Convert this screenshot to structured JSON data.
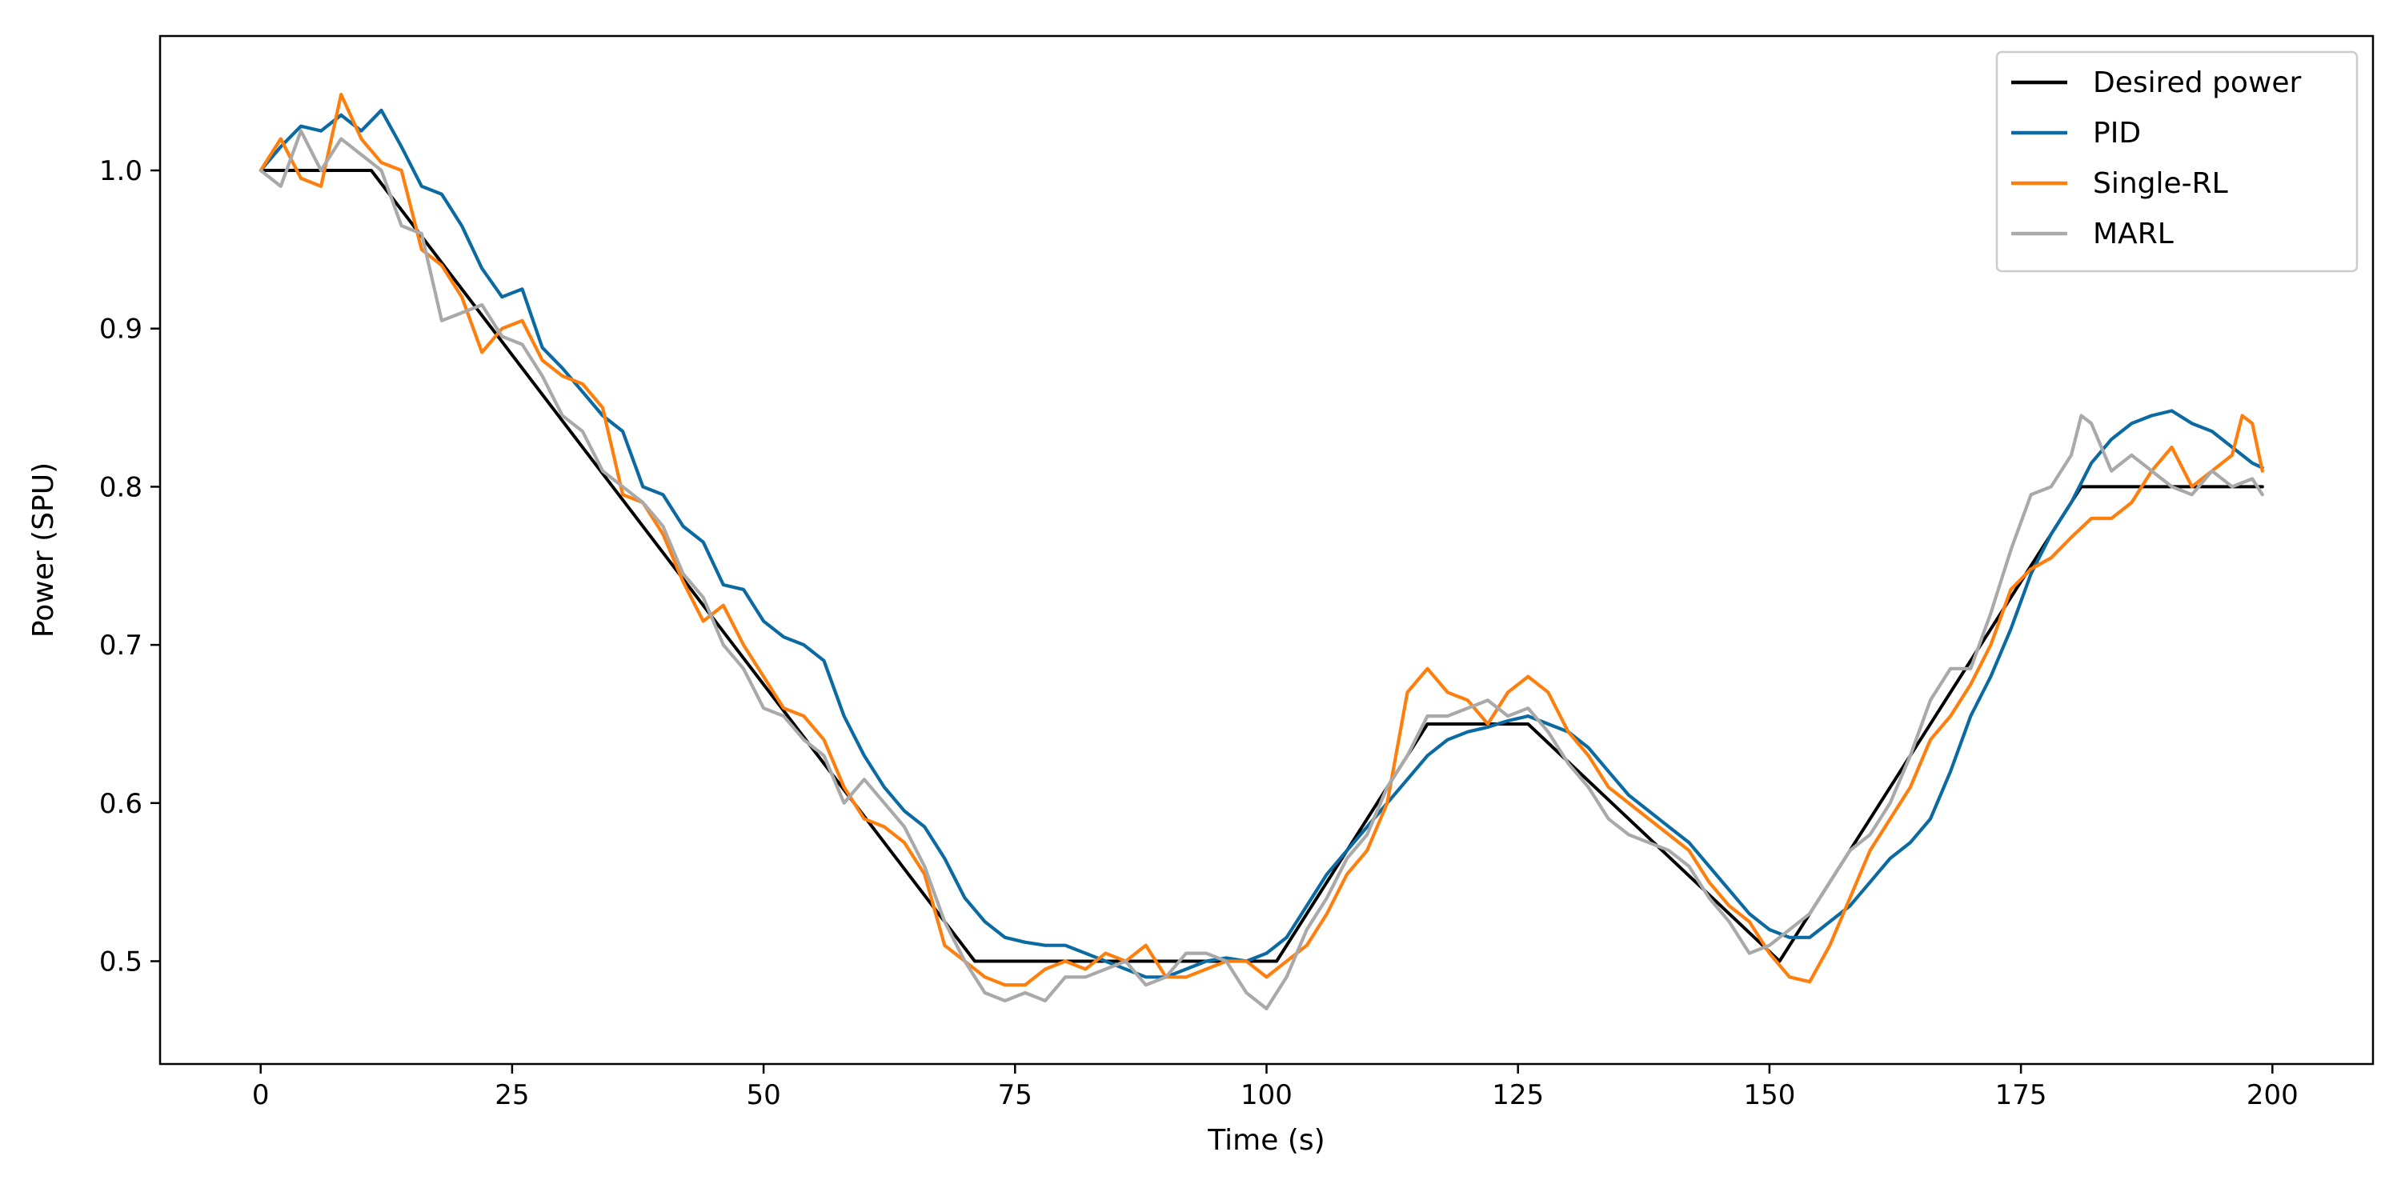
{
  "chart_data": {
    "type": "line",
    "title": "",
    "xlabel": "Time (s)",
    "ylabel": "Power (SPU)",
    "xlim": [
      -10,
      210
    ],
    "ylim": [
      0.435,
      1.085
    ],
    "xticks": [
      0,
      25,
      50,
      75,
      100,
      125,
      150,
      175,
      200
    ],
    "xtick_labels": [
      "0",
      "25",
      "50",
      "75",
      "100",
      "125",
      "150",
      "175",
      "200"
    ],
    "yticks": [
      0.5,
      0.6,
      0.7,
      0.8,
      0.9,
      1.0
    ],
    "ytick_labels": [
      "0.5",
      "0.6",
      "0.7",
      "0.8",
      "0.9",
      "1.0"
    ],
    "grid": false,
    "legend_position": "top-right",
    "series": [
      {
        "name": "Desired power",
        "color": "#000000",
        "points": [
          [
            0,
            1.0
          ],
          [
            11,
            1.0
          ],
          [
            71,
            0.5
          ],
          [
            101,
            0.5
          ],
          [
            116,
            0.65
          ],
          [
            126,
            0.65
          ],
          [
            151,
            0.5
          ],
          [
            181,
            0.8
          ],
          [
            199,
            0.8
          ]
        ]
      },
      {
        "name": "PID",
        "color": "#0a6aa1",
        "points": [
          [
            0,
            1.0
          ],
          [
            2,
            1.015
          ],
          [
            4,
            1.028
          ],
          [
            6,
            1.025
          ],
          [
            8,
            1.035
          ],
          [
            10,
            1.025
          ],
          [
            12,
            1.038
          ],
          [
            14,
            1.015
          ],
          [
            16,
            0.99
          ],
          [
            18,
            0.985
          ],
          [
            20,
            0.965
          ],
          [
            22,
            0.938
          ],
          [
            24,
            0.92
          ],
          [
            26,
            0.925
          ],
          [
            28,
            0.888
          ],
          [
            30,
            0.875
          ],
          [
            32,
            0.86
          ],
          [
            34,
            0.845
          ],
          [
            36,
            0.835
          ],
          [
            38,
            0.8
          ],
          [
            40,
            0.795
          ],
          [
            42,
            0.775
          ],
          [
            44,
            0.765
          ],
          [
            46,
            0.738
          ],
          [
            48,
            0.735
          ],
          [
            50,
            0.715
          ],
          [
            52,
            0.705
          ],
          [
            54,
            0.7
          ],
          [
            56,
            0.69
          ],
          [
            58,
            0.655
          ],
          [
            60,
            0.63
          ],
          [
            62,
            0.61
          ],
          [
            64,
            0.595
          ],
          [
            66,
            0.585
          ],
          [
            68,
            0.565
          ],
          [
            70,
            0.54
          ],
          [
            72,
            0.525
          ],
          [
            74,
            0.515
          ],
          [
            76,
            0.512
          ],
          [
            78,
            0.51
          ],
          [
            80,
            0.51
          ],
          [
            82,
            0.505
          ],
          [
            84,
            0.5
          ],
          [
            86,
            0.495
          ],
          [
            88,
            0.49
          ],
          [
            90,
            0.49
          ],
          [
            92,
            0.495
          ],
          [
            94,
            0.5
          ],
          [
            96,
            0.502
          ],
          [
            98,
            0.5
          ],
          [
            100,
            0.505
          ],
          [
            102,
            0.515
          ],
          [
            104,
            0.535
          ],
          [
            106,
            0.555
          ],
          [
            108,
            0.57
          ],
          [
            110,
            0.585
          ],
          [
            112,
            0.6
          ],
          [
            114,
            0.615
          ],
          [
            116,
            0.63
          ],
          [
            118,
            0.64
          ],
          [
            120,
            0.645
          ],
          [
            122,
            0.648
          ],
          [
            124,
            0.652
          ],
          [
            126,
            0.655
          ],
          [
            128,
            0.65
          ],
          [
            130,
            0.645
          ],
          [
            132,
            0.635
          ],
          [
            134,
            0.62
          ],
          [
            136,
            0.605
          ],
          [
            138,
            0.595
          ],
          [
            140,
            0.585
          ],
          [
            142,
            0.575
          ],
          [
            144,
            0.56
          ],
          [
            146,
            0.545
          ],
          [
            148,
            0.53
          ],
          [
            150,
            0.52
          ],
          [
            152,
            0.515
          ],
          [
            154,
            0.515
          ],
          [
            156,
            0.525
          ],
          [
            158,
            0.535
          ],
          [
            160,
            0.55
          ],
          [
            162,
            0.565
          ],
          [
            164,
            0.575
          ],
          [
            166,
            0.59
          ],
          [
            168,
            0.62
          ],
          [
            170,
            0.655
          ],
          [
            172,
            0.68
          ],
          [
            174,
            0.71
          ],
          [
            176,
            0.745
          ],
          [
            178,
            0.77
          ],
          [
            180,
            0.79
          ],
          [
            182,
            0.815
          ],
          [
            184,
            0.83
          ],
          [
            186,
            0.84
          ],
          [
            188,
            0.845
          ],
          [
            190,
            0.848
          ],
          [
            192,
            0.84
          ],
          [
            194,
            0.835
          ],
          [
            196,
            0.825
          ],
          [
            198,
            0.815
          ],
          [
            199,
            0.812
          ]
        ]
      },
      {
        "name": "Single-RL",
        "color": "#ff7f0e",
        "points": [
          [
            0,
            1.0
          ],
          [
            2,
            1.02
          ],
          [
            4,
            0.995
          ],
          [
            6,
            0.99
          ],
          [
            8,
            1.048
          ],
          [
            10,
            1.02
          ],
          [
            12,
            1.005
          ],
          [
            14,
            1.0
          ],
          [
            16,
            0.95
          ],
          [
            18,
            0.94
          ],
          [
            20,
            0.92
          ],
          [
            22,
            0.885
          ],
          [
            24,
            0.9
          ],
          [
            26,
            0.905
          ],
          [
            28,
            0.88
          ],
          [
            30,
            0.87
          ],
          [
            32,
            0.865
          ],
          [
            34,
            0.85
          ],
          [
            36,
            0.795
          ],
          [
            38,
            0.79
          ],
          [
            40,
            0.77
          ],
          [
            42,
            0.74
          ],
          [
            44,
            0.715
          ],
          [
            46,
            0.725
          ],
          [
            48,
            0.7
          ],
          [
            50,
            0.68
          ],
          [
            52,
            0.66
          ],
          [
            54,
            0.655
          ],
          [
            56,
            0.64
          ],
          [
            58,
            0.61
          ],
          [
            60,
            0.59
          ],
          [
            62,
            0.585
          ],
          [
            64,
            0.575
          ],
          [
            66,
            0.555
          ],
          [
            68,
            0.51
          ],
          [
            70,
            0.5
          ],
          [
            72,
            0.49
          ],
          [
            74,
            0.485
          ],
          [
            76,
            0.485
          ],
          [
            78,
            0.495
          ],
          [
            80,
            0.5
          ],
          [
            82,
            0.495
          ],
          [
            84,
            0.505
          ],
          [
            86,
            0.5
          ],
          [
            88,
            0.51
          ],
          [
            90,
            0.49
          ],
          [
            92,
            0.49
          ],
          [
            94,
            0.495
          ],
          [
            96,
            0.5
          ],
          [
            98,
            0.5
          ],
          [
            100,
            0.49
          ],
          [
            102,
            0.5
          ],
          [
            104,
            0.51
          ],
          [
            106,
            0.53
          ],
          [
            108,
            0.555
          ],
          [
            110,
            0.57
          ],
          [
            112,
            0.6
          ],
          [
            114,
            0.67
          ],
          [
            116,
            0.685
          ],
          [
            118,
            0.67
          ],
          [
            120,
            0.665
          ],
          [
            122,
            0.65
          ],
          [
            124,
            0.67
          ],
          [
            126,
            0.68
          ],
          [
            128,
            0.67
          ],
          [
            130,
            0.645
          ],
          [
            132,
            0.63
          ],
          [
            134,
            0.61
          ],
          [
            136,
            0.6
          ],
          [
            138,
            0.59
          ],
          [
            140,
            0.58
          ],
          [
            142,
            0.57
          ],
          [
            144,
            0.55
          ],
          [
            146,
            0.535
          ],
          [
            148,
            0.525
          ],
          [
            150,
            0.505
          ],
          [
            152,
            0.49
          ],
          [
            154,
            0.487
          ],
          [
            156,
            0.51
          ],
          [
            158,
            0.54
          ],
          [
            160,
            0.57
          ],
          [
            162,
            0.59
          ],
          [
            164,
            0.61
          ],
          [
            166,
            0.64
          ],
          [
            168,
            0.655
          ],
          [
            170,
            0.675
          ],
          [
            172,
            0.7
          ],
          [
            174,
            0.735
          ],
          [
            176,
            0.748
          ],
          [
            178,
            0.755
          ],
          [
            180,
            0.768
          ],
          [
            182,
            0.78
          ],
          [
            184,
            0.78
          ],
          [
            186,
            0.79
          ],
          [
            188,
            0.81
          ],
          [
            190,
            0.825
          ],
          [
            192,
            0.8
          ],
          [
            194,
            0.81
          ],
          [
            196,
            0.82
          ],
          [
            197,
            0.845
          ],
          [
            198,
            0.84
          ],
          [
            199,
            0.81
          ]
        ]
      },
      {
        "name": "MARL",
        "color": "#a9a9a9",
        "points": [
          [
            0,
            1.0
          ],
          [
            2,
            0.99
          ],
          [
            4,
            1.025
          ],
          [
            6,
            1.0
          ],
          [
            8,
            1.02
          ],
          [
            10,
            1.01
          ],
          [
            12,
            1.0
          ],
          [
            14,
            0.965
          ],
          [
            16,
            0.96
          ],
          [
            18,
            0.905
          ],
          [
            20,
            0.91
          ],
          [
            22,
            0.915
          ],
          [
            24,
            0.895
          ],
          [
            26,
            0.89
          ],
          [
            28,
            0.87
          ],
          [
            30,
            0.845
          ],
          [
            32,
            0.835
          ],
          [
            34,
            0.81
          ],
          [
            36,
            0.8
          ],
          [
            38,
            0.79
          ],
          [
            40,
            0.775
          ],
          [
            42,
            0.745
          ],
          [
            44,
            0.73
          ],
          [
            46,
            0.7
          ],
          [
            48,
            0.685
          ],
          [
            50,
            0.66
          ],
          [
            52,
            0.655
          ],
          [
            54,
            0.64
          ],
          [
            56,
            0.63
          ],
          [
            58,
            0.6
          ],
          [
            60,
            0.615
          ],
          [
            62,
            0.6
          ],
          [
            64,
            0.585
          ],
          [
            66,
            0.56
          ],
          [
            68,
            0.525
          ],
          [
            70,
            0.5
          ],
          [
            72,
            0.48
          ],
          [
            74,
            0.475
          ],
          [
            76,
            0.48
          ],
          [
            78,
            0.475
          ],
          [
            80,
            0.49
          ],
          [
            82,
            0.49
          ],
          [
            84,
            0.495
          ],
          [
            86,
            0.5
          ],
          [
            88,
            0.485
          ],
          [
            90,
            0.49
          ],
          [
            92,
            0.505
          ],
          [
            94,
            0.505
          ],
          [
            96,
            0.5
          ],
          [
            98,
            0.48
          ],
          [
            100,
            0.47
          ],
          [
            102,
            0.49
          ],
          [
            104,
            0.52
          ],
          [
            106,
            0.54
          ],
          [
            108,
            0.565
          ],
          [
            110,
            0.58
          ],
          [
            112,
            0.61
          ],
          [
            114,
            0.63
          ],
          [
            116,
            0.655
          ],
          [
            118,
            0.655
          ],
          [
            120,
            0.66
          ],
          [
            122,
            0.665
          ],
          [
            124,
            0.655
          ],
          [
            126,
            0.66
          ],
          [
            128,
            0.645
          ],
          [
            130,
            0.625
          ],
          [
            132,
            0.61
          ],
          [
            134,
            0.59
          ],
          [
            136,
            0.58
          ],
          [
            138,
            0.575
          ],
          [
            140,
            0.57
          ],
          [
            142,
            0.56
          ],
          [
            144,
            0.54
          ],
          [
            146,
            0.525
          ],
          [
            148,
            0.505
          ],
          [
            150,
            0.51
          ],
          [
            152,
            0.52
          ],
          [
            154,
            0.53
          ],
          [
            156,
            0.55
          ],
          [
            158,
            0.57
          ],
          [
            160,
            0.58
          ],
          [
            162,
            0.6
          ],
          [
            164,
            0.63
          ],
          [
            166,
            0.665
          ],
          [
            168,
            0.685
          ],
          [
            170,
            0.685
          ],
          [
            172,
            0.72
          ],
          [
            174,
            0.76
          ],
          [
            176,
            0.795
          ],
          [
            178,
            0.8
          ],
          [
            180,
            0.82
          ],
          [
            181,
            0.845
          ],
          [
            182,
            0.84
          ],
          [
            184,
            0.81
          ],
          [
            186,
            0.82
          ],
          [
            188,
            0.81
          ],
          [
            190,
            0.8
          ],
          [
            192,
            0.795
          ],
          [
            194,
            0.81
          ],
          [
            196,
            0.8
          ],
          [
            198,
            0.805
          ],
          [
            199,
            0.795
          ]
        ]
      }
    ]
  }
}
